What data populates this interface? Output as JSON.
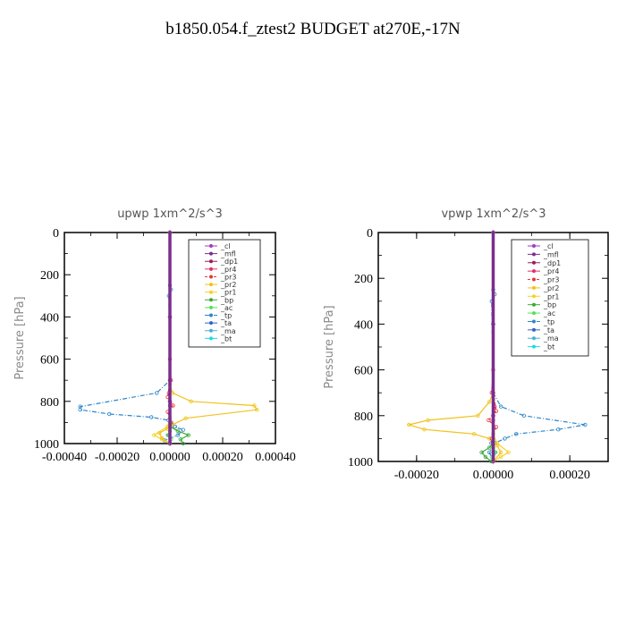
{
  "main_title": "b1850.054.f_ztest2  BUDGET at270E,-17N",
  "chart_data": [
    {
      "type": "line",
      "title": "upwp   1xm^2/s^3",
      "xlabel": "",
      "ylabel": "Pressure  [hPa]",
      "xlim": [
        -0.0004,
        0.0004
      ],
      "ylim": [
        1000,
        0
      ],
      "xticks": [
        "-0.00040",
        "-0.00020",
        "0.00000",
        "0.00020",
        "0.00040"
      ],
      "xtick_values": [
        -0.0004,
        -0.0002,
        0,
        0.0002,
        0.0004
      ],
      "yticks": [
        "0",
        "200",
        "400",
        "600",
        "800",
        "1000"
      ],
      "ytick_values": [
        0,
        200,
        400,
        600,
        800,
        1000
      ],
      "legend_position": "top-right",
      "series": [
        {
          "name": "_cl",
          "color": "#9a3fbf",
          "dash": "",
          "x": [
            0,
            0,
            0,
            0
          ],
          "y": [
            0,
            400,
            800,
            1000
          ]
        },
        {
          "name": "_mfl",
          "color": "#7b2d8e",
          "dash": "",
          "x": [
            0,
            0,
            0,
            0
          ],
          "y": [
            0,
            400,
            800,
            1000
          ]
        },
        {
          "name": "_dp1",
          "color": "#9c1b5e",
          "dash": "",
          "x": [
            0,
            0,
            0,
            0
          ],
          "y": [
            0,
            400,
            800,
            1000
          ]
        },
        {
          "name": "_pr4",
          "color": "#e0306a",
          "dash": "",
          "x": [
            0,
            0,
            4e-06,
            -4e-06,
            0,
            0
          ],
          "y": [
            0,
            600,
            700,
            760,
            820,
            1000
          ]
        },
        {
          "name": "_pr3",
          "color": "#e8373a",
          "dash": "3,2",
          "x": [
            0,
            0,
            -8e-06,
            1.2e-05,
            -8e-06,
            4e-06,
            0
          ],
          "y": [
            0,
            700,
            780,
            820,
            850,
            900,
            1000
          ]
        },
        {
          "name": "_pr2",
          "color": "#f1c21b",
          "dash": "",
          "x": [
            0,
            0,
            1e-05,
            8e-05,
            0.00032,
            0.00033,
            6e-05,
            1e-05,
            -1e-05,
            -4e-05,
            -3e-05,
            0
          ],
          "y": [
            0,
            720,
            760,
            800,
            820,
            840,
            880,
            910,
            930,
            950,
            975,
            1000
          ]
        },
        {
          "name": "_pr1",
          "color": "#f5d327",
          "dash": "",
          "x": [
            0,
            0,
            -1e-05,
            -6e-05,
            -3e-05,
            0
          ],
          "y": [
            0,
            880,
            920,
            960,
            980,
            1000
          ]
        },
        {
          "name": "_bp",
          "color": "#3aaa35",
          "dash": "",
          "x": [
            0,
            0,
            3e-05,
            7e-05,
            4e-05,
            5e-05
          ],
          "y": [
            0,
            920,
            940,
            960,
            980,
            1000
          ]
        },
        {
          "name": "_ac",
          "color": "#55e05a",
          "dash": "",
          "x": [
            0,
            0,
            -8e-06,
            4e-06,
            0
          ],
          "y": [
            0,
            940,
            960,
            980,
            1000
          ]
        },
        {
          "name": "_tp",
          "color": "#2e86c9",
          "dash": "5,2,1,2",
          "x": [
            0,
            0,
            4e-06,
            -4e-06,
            0,
            -5e-05,
            -0.00034,
            -0.00034,
            -0.00023,
            -7e-05,
            -5e-06,
            5e-06,
            2e-05,
            5e-05,
            3e-05,
            -2e-05,
            0
          ],
          "y": [
            0,
            250,
            270,
            300,
            700,
            760,
            825,
            840,
            860,
            875,
            890,
            900,
            920,
            935,
            960,
            985,
            1000
          ]
        },
        {
          "name": "_ta",
          "color": "#3461c9",
          "dash": "",
          "x": [
            0,
            0,
            5e-06,
            -5e-06,
            0
          ],
          "y": [
            0,
            880,
            920,
            960,
            1000
          ]
        },
        {
          "name": "_ma",
          "color": "#4ab0d0",
          "dash": "",
          "x": [
            0,
            0
          ],
          "y": [
            0,
            1000
          ]
        },
        {
          "name": "_bt",
          "color": "#1fd9e6",
          "dash": "",
          "x": [
            0,
            0
          ],
          "y": [
            0,
            1000
          ]
        }
      ]
    },
    {
      "type": "line",
      "title": "vpwp   1xm^2/s^3",
      "xlabel": "",
      "ylabel": "Pressure  [hPa]",
      "xlim": [
        -0.0003,
        0.0003
      ],
      "ylim": [
        1000,
        0
      ],
      "xticks": [
        "-0.00020",
        "0.00000",
        "0.00020"
      ],
      "xtick_values": [
        -0.0002,
        0,
        0.0002
      ],
      "yticks": [
        "0",
        "200",
        "400",
        "600",
        "800",
        "1000"
      ],
      "ytick_values": [
        0,
        200,
        400,
        600,
        800,
        1000
      ],
      "legend_position": "top-right",
      "series": [
        {
          "name": "_cl",
          "color": "#9a3fbf",
          "dash": "",
          "x": [
            0,
            0,
            0,
            0
          ],
          "y": [
            0,
            400,
            800,
            1000
          ]
        },
        {
          "name": "_mfl",
          "color": "#7b2d8e",
          "dash": "",
          "x": [
            0,
            0,
            0,
            0
          ],
          "y": [
            0,
            400,
            800,
            1000
          ]
        },
        {
          "name": "_dp1",
          "color": "#9c1b5e",
          "dash": "",
          "x": [
            0,
            0,
            0,
            0
          ],
          "y": [
            0,
            400,
            800,
            1000
          ]
        },
        {
          "name": "_pr4",
          "color": "#e0306a",
          "dash": "",
          "x": [
            0,
            0,
            -4e-06,
            4e-06,
            0,
            0
          ],
          "y": [
            0,
            600,
            700,
            760,
            820,
            1000
          ]
        },
        {
          "name": "_pr3",
          "color": "#e8373a",
          "dash": "3,2",
          "x": [
            0,
            0,
            8e-06,
            -1.2e-05,
            8e-06,
            -4e-06,
            0
          ],
          "y": [
            0,
            700,
            780,
            820,
            850,
            900,
            1000
          ]
        },
        {
          "name": "_pr2",
          "color": "#f1c21b",
          "dash": "",
          "x": [
            0,
            0,
            -1e-05,
            -4e-05,
            -0.00017,
            -0.00022,
            -0.00018,
            -5e-05,
            -1e-05,
            1e-05,
            2e-05,
            0
          ],
          "y": [
            0,
            700,
            740,
            800,
            820,
            840,
            860,
            880,
            900,
            930,
            960,
            1000
          ]
        },
        {
          "name": "_pr1",
          "color": "#f5d327",
          "dash": "",
          "x": [
            0,
            0,
            1e-05,
            4e-05,
            2e-05,
            0
          ],
          "y": [
            0,
            880,
            920,
            960,
            980,
            1000
          ]
        },
        {
          "name": "_bp",
          "color": "#3aaa35",
          "dash": "",
          "x": [
            0,
            0,
            -1e-05,
            -3e-05,
            -2e-05,
            -5e-06
          ],
          "y": [
            0,
            920,
            940,
            960,
            980,
            1000
          ]
        },
        {
          "name": "_ac",
          "color": "#55e05a",
          "dash": "",
          "x": [
            0,
            0,
            6e-06,
            -4e-06,
            0
          ],
          "y": [
            0,
            940,
            960,
            980,
            1000
          ]
        },
        {
          "name": "_tp",
          "color": "#2e86c9",
          "dash": "5,2,1,2",
          "x": [
            0,
            0,
            4e-06,
            -4e-06,
            0,
            2e-05,
            8e-05,
            0.00024,
            0.00017,
            6e-05,
            3e-05,
            5e-06,
            -1e-05,
            0
          ],
          "y": [
            0,
            250,
            270,
            300,
            700,
            760,
            800,
            840,
            860,
            880,
            900,
            920,
            960,
            1000
          ]
        },
        {
          "name": "_ta",
          "color": "#3461c9",
          "dash": "",
          "x": [
            0,
            0,
            -5e-06,
            5e-06,
            0
          ],
          "y": [
            0,
            880,
            920,
            960,
            1000
          ]
        },
        {
          "name": "_ma",
          "color": "#4ab0d0",
          "dash": "",
          "x": [
            0,
            0
          ],
          "y": [
            0,
            1000
          ]
        },
        {
          "name": "_bt",
          "color": "#1fd9e6",
          "dash": "",
          "x": [
            0,
            0
          ],
          "y": [
            0,
            1000
          ]
        }
      ]
    }
  ]
}
